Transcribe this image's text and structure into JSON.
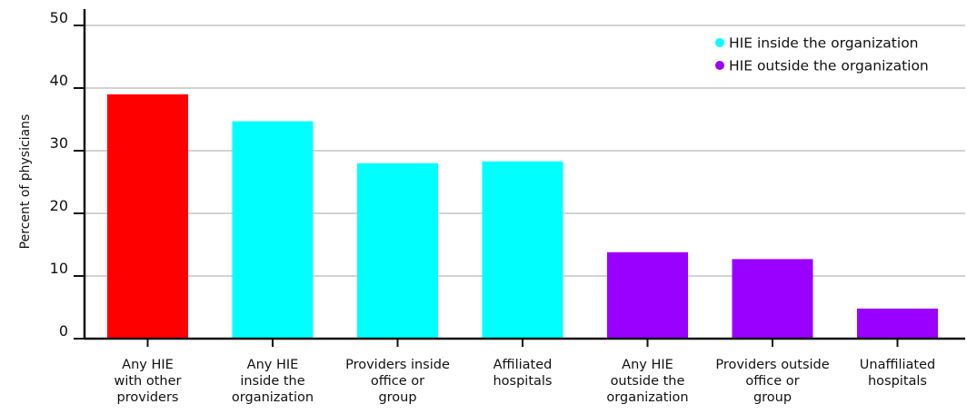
{
  "chart_data": {
    "type": "bar",
    "ylabel": "Percent of physicians",
    "xlabel": "",
    "ylim": [
      0,
      50
    ],
    "yticks": [
      0,
      10,
      20,
      30,
      40,
      50
    ],
    "grid": true,
    "legend_position": "top-right",
    "categories": [
      [
        "Any HIE",
        "with other",
        "providers"
      ],
      [
        "Any HIE",
        "inside the",
        "organization"
      ],
      [
        "Providers inside",
        "office or",
        "group"
      ],
      [
        "Affiliated",
        "hospitals"
      ],
      [
        "Any HIE",
        "outside the",
        "organization"
      ],
      [
        "Providers outside",
        "office or",
        "group"
      ],
      [
        "Unaffiliated",
        "hospitals"
      ]
    ],
    "values": [
      39,
      34.7,
      28,
      28.3,
      13.8,
      12.7,
      4.8
    ],
    "bar_colors": [
      "#ff0000",
      "#00ffff",
      "#00ffff",
      "#00ffff",
      "#9900ff",
      "#9900ff",
      "#9900ff"
    ],
    "legend": [
      {
        "label": "HIE inside the organization",
        "color": "#00ffff"
      },
      {
        "label": "HIE outside the organization",
        "color": "#9900ff"
      }
    ]
  }
}
